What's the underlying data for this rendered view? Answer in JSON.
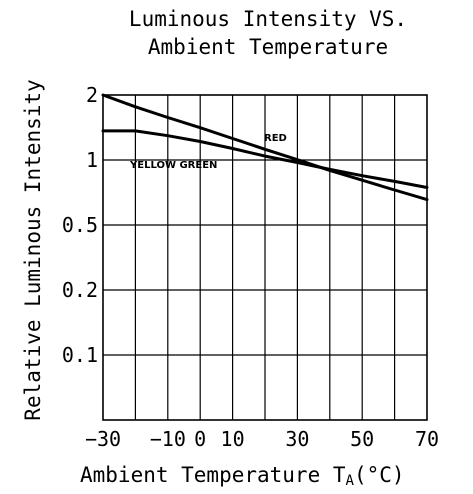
{
  "chart_data": {
    "type": "line",
    "title_lines": [
      "Luminous Intensity VS.",
      "Ambient Temperature"
    ],
    "xlabel": "Ambient Temperature T",
    "xlabel_sub": "A",
    "xlabel_unit": "(°C)",
    "ylabel": "Relative Luminous Intensity",
    "x_tick_labels": [
      "−30",
      "−10",
      "0",
      "10",
      "30",
      "50",
      "70"
    ],
    "y_tick_labels": [
      "2",
      "1",
      "0.5",
      "0.2",
      "0.1"
    ],
    "x": [
      -30,
      -20,
      -10,
      0,
      10,
      20,
      30,
      40,
      50,
      60,
      70
    ],
    "y_scale": "log",
    "ylim": [
      0.05,
      2
    ],
    "xlim": [
      -30,
      70
    ],
    "grid": true,
    "series": [
      {
        "name": "RED",
        "values": [
          2.0,
          1.75,
          1.55,
          1.38,
          1.22,
          1.08,
          0.96,
          0.85,
          0.76,
          0.68,
          0.61
        ]
      },
      {
        "name": "YELLOW GREEN",
        "values": [
          1.33,
          1.33,
          1.26,
          1.18,
          1.09,
          1.0,
          0.93,
          0.86,
          0.8,
          0.75,
          0.7
        ]
      }
    ]
  }
}
